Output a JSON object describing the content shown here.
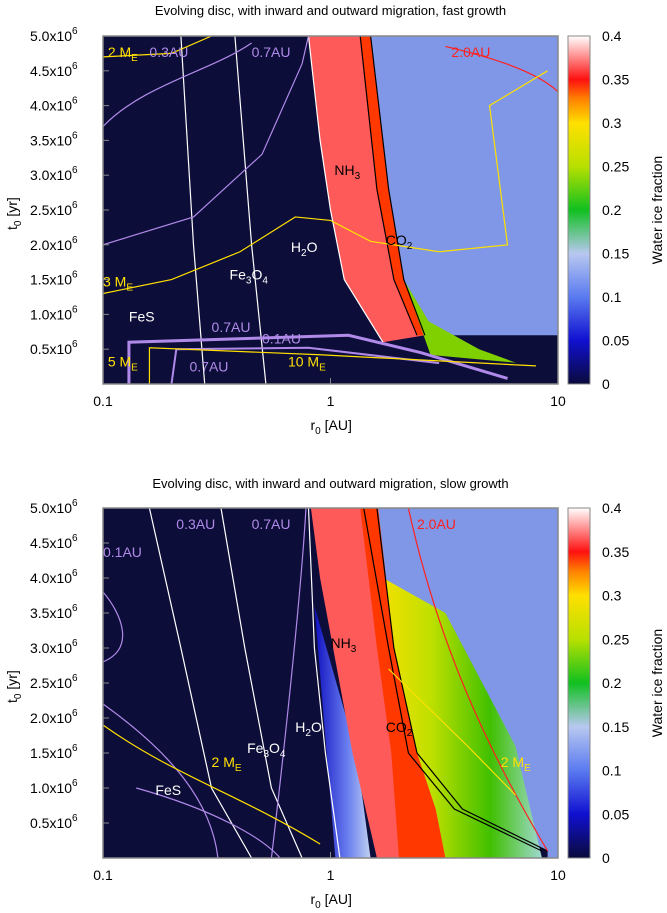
{
  "chart_data": [
    {
      "type": "heatmap",
      "title": "Evolving disc, with inward and outward migration, fast growth",
      "xlabel": "r",
      "xlabel_sub": "0",
      "xlabel_unit": " [AU]",
      "ylabel": "t",
      "ylabel_sub": "0",
      "ylabel_unit": " [yr]",
      "xscale": "log",
      "xlim": [
        0.1,
        10
      ],
      "ylim": [
        0,
        5000000
      ],
      "x_ticks": [
        "0.1",
        "1",
        "10"
      ],
      "y_ticks": [
        {
          "base": "0.5x10",
          "exp": "6",
          "value": 500000
        },
        {
          "base": "1.0x10",
          "exp": "6",
          "value": 1000000
        },
        {
          "base": "1.5x10",
          "exp": "6",
          "value": 1500000
        },
        {
          "base": "2.0x10",
          "exp": "6",
          "value": 2000000
        },
        {
          "base": "2.5x10",
          "exp": "6",
          "value": 2500000
        },
        {
          "base": "3.0x10",
          "exp": "6",
          "value": 3000000
        },
        {
          "base": "3.5x10",
          "exp": "6",
          "value": 3500000
        },
        {
          "base": "4.0x10",
          "exp": "6",
          "value": 4000000
        },
        {
          "base": "4.5x10",
          "exp": "6",
          "value": 4500000
        },
        {
          "base": "5.0x10",
          "exp": "6",
          "value": 5000000
        }
      ],
      "colorbar": {
        "label": "Water ice fraction",
        "range": [
          0,
          0.4
        ],
        "ticks": [
          "0",
          "0.05",
          "0.1",
          "0.15",
          "0.2",
          "0.25",
          "0.3",
          "0.35",
          "0.4"
        ]
      },
      "regions": [
        {
          "name": "dry",
          "value": 0.0,
          "color": "#0d0d3a"
        },
        {
          "name": "water-ice",
          "value": 0.33,
          "color": "#ff5a5a"
        },
        {
          "name": "co2-band",
          "value": 0.36,
          "color": "#ff3800"
        },
        {
          "name": "outer",
          "value": 0.1,
          "color": "#7f97e6"
        }
      ],
      "ice_lines": [
        {
          "label": "FeS",
          "color": "#ffffff",
          "points": [
            [
              0.28,
              0
            ],
            [
              0.25,
              2000000
            ],
            [
              0.22,
              5000000
            ]
          ]
        },
        {
          "label": "Fe3O4",
          "color": "#ffffff",
          "points": [
            [
              0.52,
              0
            ],
            [
              0.45,
              2000000
            ],
            [
              0.38,
              5000000
            ]
          ]
        },
        {
          "label": "H2O",
          "color": "#ffffff",
          "points": [
            [
              1.7,
              600000
            ],
            [
              1.15,
              1500000
            ],
            [
              1.0,
              2500000
            ],
            [
              0.9,
              3500000
            ],
            [
              0.8,
              5000000
            ]
          ]
        },
        {
          "label": "NH3",
          "color": "#000000",
          "points": [
            [
              2.4,
              700000
            ],
            [
              1.9,
              1500000
            ],
            [
              1.6,
              2800000
            ],
            [
              1.35,
              5000000
            ]
          ]
        },
        {
          "label": "CO2",
          "color": "#000000",
          "points": [
            [
              2.6,
              700000
            ],
            [
              2.1,
              1500000
            ],
            [
              1.8,
              2800000
            ],
            [
              1.5,
              5000000
            ]
          ]
        }
      ],
      "contour_labels": [
        {
          "text": "0.3AU",
          "color": "#b08ae8",
          "x": 0.16,
          "y": 4700000
        },
        {
          "text": "0.7AU",
          "color": "#b08ae8",
          "x": 0.45,
          "y": 4700000
        },
        {
          "text": "2.0AU",
          "color": "#ff2020",
          "x": 3.4,
          "y": 4700000
        },
        {
          "text": "0.7AU",
          "color": "#b08ae8",
          "x": 0.3,
          "y": 750000
        },
        {
          "text": "0.1AU",
          "color": "#b08ae8",
          "x": 0.5,
          "y": 580000
        },
        {
          "text": "0.7AU",
          "color": "#b08ae8",
          "x": 0.24,
          "y": 180000
        }
      ],
      "mass_labels": [
        {
          "base": "2 M",
          "sub": "E",
          "x": 0.105,
          "y": 4700000
        },
        {
          "base": "3 M",
          "sub": "E",
          "x": 0.1,
          "y": 1400000
        },
        {
          "base": "5 M",
          "sub": "E",
          "x": 0.105,
          "y": 250000
        },
        {
          "base": "10 M",
          "sub": "E",
          "x": 0.65,
          "y": 250000
        }
      ]
    },
    {
      "type": "heatmap",
      "title": "Evolving disc, with inward and outward migration, slow growth",
      "xlabel": "r",
      "xlabel_sub": "0",
      "xlabel_unit": " [AU]",
      "ylabel": "t",
      "ylabel_sub": "0",
      "ylabel_unit": " [yr]",
      "xscale": "log",
      "xlim": [
        0.1,
        10
      ],
      "ylim": [
        0,
        5000000
      ],
      "x_ticks": [
        "0.1",
        "1",
        "10"
      ],
      "y_ticks": [
        {
          "base": "0.5x10",
          "exp": "6",
          "value": 500000
        },
        {
          "base": "1.0x10",
          "exp": "6",
          "value": 1000000
        },
        {
          "base": "1.5x10",
          "exp": "6",
          "value": 1500000
        },
        {
          "base": "2.0x10",
          "exp": "6",
          "value": 2000000
        },
        {
          "base": "2.5x10",
          "exp": "6",
          "value": 2500000
        },
        {
          "base": "3.0x10",
          "exp": "6",
          "value": 3000000
        },
        {
          "base": "3.5x10",
          "exp": "6",
          "value": 3500000
        },
        {
          "base": "4.0x10",
          "exp": "6",
          "value": 4000000
        },
        {
          "base": "4.5x10",
          "exp": "6",
          "value": 4500000
        },
        {
          "base": "5.0x10",
          "exp": "6",
          "value": 5000000
        }
      ],
      "colorbar": {
        "label": "Water ice fraction",
        "range": [
          0,
          0.4
        ],
        "ticks": [
          "0",
          "0.05",
          "0.1",
          "0.15",
          "0.2",
          "0.25",
          "0.3",
          "0.35",
          "0.4"
        ]
      },
      "regions": [
        {
          "name": "dry",
          "value": 0.0,
          "color": "#0d0d3a"
        },
        {
          "name": "water-ice",
          "value": 0.33,
          "color": "#ff5a5a"
        },
        {
          "name": "co2-band",
          "value": 0.36,
          "color": "#ff3800"
        },
        {
          "name": "outer",
          "value": 0.1,
          "color": "#7f97e6"
        },
        {
          "name": "gradient",
          "value": 0.2,
          "color": "#40c000"
        }
      ],
      "ice_lines": [
        {
          "label": "FeS",
          "color": "#ffffff",
          "points": [
            [
              0.45,
              0
            ],
            [
              0.3,
              1000000
            ],
            [
              0.22,
              3000000
            ],
            [
              0.16,
              5000000
            ]
          ]
        },
        {
          "label": "Fe3O4",
          "color": "#ffffff",
          "points": [
            [
              0.75,
              0
            ],
            [
              0.55,
              1000000
            ],
            [
              0.42,
              3000000
            ],
            [
              0.33,
              5000000
            ]
          ]
        },
        {
          "label": "H2O",
          "color": "#ffffff",
          "points": [
            [
              1.1,
              0
            ],
            [
              0.95,
              1500000
            ],
            [
              0.85,
              3000000
            ],
            [
              0.8,
              5000000
            ]
          ]
        },
        {
          "label": "NH3",
          "color": "#000000",
          "points": [
            [
              8.5,
              100000
            ],
            [
              3.5,
              700000
            ],
            [
              2.2,
              1500000
            ],
            [
              1.8,
              3000000
            ],
            [
              1.4,
              5000000
            ]
          ]
        },
        {
          "label": "CO2",
          "color": "#000000",
          "points": [
            [
              9.0,
              100000
            ],
            [
              3.8,
              700000
            ],
            [
              2.4,
              1500000
            ],
            [
              1.9,
              3000000
            ],
            [
              1.6,
              5000000
            ]
          ]
        }
      ],
      "contour_labels": [
        {
          "text": "0.1AU",
          "color": "#b08ae8",
          "x": 0.1,
          "y": 4300000
        },
        {
          "text": "0.3AU",
          "color": "#b08ae8",
          "x": 0.21,
          "y": 4700000
        },
        {
          "text": "0.7AU",
          "color": "#b08ae8",
          "x": 0.45,
          "y": 4700000
        },
        {
          "text": "2.0AU",
          "color": "#ff2020",
          "x": 2.4,
          "y": 4700000
        }
      ],
      "mass_labels": [
        {
          "base": "2 M",
          "sub": "E",
          "x": 0.3,
          "y": 1300000
        },
        {
          "base": "2 M",
          "sub": "E",
          "x": 5.6,
          "y": 1300000
        }
      ]
    }
  ]
}
